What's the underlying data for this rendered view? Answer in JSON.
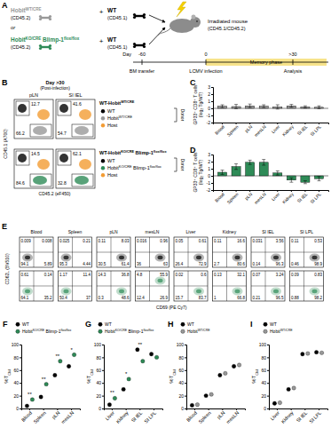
{
  "panel_a": {
    "label": "A",
    "donors": [
      {
        "mouse": [
          "Hobit",
          {
            "sup": "WT/CRE"
          }
        ],
        "color": "#999999",
        "cd": "(CD45.2)",
        "plus": "+",
        "partner": "WT",
        "partner_cd": "(CD45.1)"
      },
      {
        "mouse": [
          "Hobit",
          {
            "sup": "KO/CRE"
          },
          " Blimp-1",
          {
            "sup": "flox/flox"
          }
        ],
        "color": "#2e8b57",
        "cd": "(CD45.2)",
        "plus": "+",
        "partner": "WT",
        "partner_cd": "(CD45.1)"
      }
    ],
    "or": "or",
    "recipient": [
      "Irradiated mouse",
      "(CD45.1/CD45.2)"
    ],
    "timeline": {
      "label": "Day",
      "events": [
        {
          "day": "-60",
          "text": "BM transfer"
        },
        {
          "day": "0",
          "text": "LCMV infection"
        },
        {
          "day": ">30",
          "text": "Analysis"
        }
      ],
      "phase": "Memory phase"
    }
  },
  "panel_b": {
    "label": "B",
    "timepoint": [
      "Day >30",
      "(Post-infection)"
    ],
    "tissues": [
      "pLN",
      "SI IEL"
    ],
    "y_axis": "CD45.1 (A700)",
    "x_axis": "CD45.2 (eF450)",
    "donor_label": "Donor",
    "rows": [
      {
        "title": [
          "WT-Hobit",
          {
            "sup": "WT/CRE"
          }
        ],
        "entries": [
          {
            "text": [
              "WT"
            ],
            "color": "#000000"
          },
          {
            "text": [
              "Hobit",
              {
                "sup": "WT/CRE"
              }
            ],
            "color": "#999999"
          },
          {
            "text": [
              "Host"
            ],
            "color": "#f39c33"
          }
        ],
        "gates": [
          [
            12.7,
            66.2
          ],
          [
            41.6,
            54.7
          ]
        ]
      },
      {
        "title": [
          "WT-Hobit",
          {
            "sup": "KO/CRE"
          },
          " Blimp-1",
          {
            "sup": "flox/flox"
          }
        ],
        "entries": [
          {
            "text": [
              "WT"
            ],
            "color": "#000000"
          },
          {
            "text": [
              "Hobit",
              {
                "sup": "KO/CRE"
              },
              " Blimp-1",
              {
                "sup": "flox/flox"
              }
            ],
            "color": "#2e8b57"
          },
          {
            "text": [
              "Host"
            ],
            "color": "#f39c33"
          }
        ],
        "gates": [
          [
            14.5,
            84.6
          ],
          [
            62.1,
            32.8
          ]
        ]
      }
    ]
  },
  "panel_e": {
    "label": "E",
    "tissues": [
      "Blood",
      "Spleen",
      "pLN",
      "mesLN",
      "Liver",
      "Kidney",
      "SI IEL",
      "SI LPL"
    ],
    "y_axis": "CD62L (BV510)",
    "x_axis": "CD69 (PE Cy7)",
    "rows": [
      {
        "color": "#000000",
        "quadrants": [
          [
            0.009,
            0.008,
            94.1,
            5.89
          ],
          [
            0.025,
            0.21,
            95.3,
            4.44
          ],
          [
            0.11,
            8.03,
            30.5,
            61.4
          ],
          [
            0.016,
            0.96,
            36,
            63
          ],
          [
            0.05,
            0.61,
            26.4,
            72.9
          ],
          [
            0.11,
            16.6,
            2.7,
            80.6
          ],
          [
            0.031,
            3.56,
            0.14,
            96.3
          ],
          [
            0.11,
            0.53,
            0.46,
            98.9
          ]
        ]
      },
      {
        "color": "#2e8b57",
        "quadrants": [
          [
            0.61,
            0.14,
            64.1,
            35.2
          ],
          [
            1.17,
            11.4,
            50.4,
            37
          ],
          [
            14.3,
            36.8,
            0.3,
            48.6
          ],
          [
            4.8,
            55.9,
            12.4,
            26.9
          ],
          [
            0.02,
            0.6,
            15.7,
            83.7
          ],
          [
            0.13,
            32.1,
            1,
            66.8
          ],
          [
            0.07,
            3.24,
            0.21,
            96.5
          ],
          [
            0.09,
            0.83,
            0.88,
            98.2
          ]
        ]
      }
    ]
  },
  "chart_data": [
    {
      "title": "C",
      "type": "bar",
      "y_label": [
        "GP33⁺ CD8⁺ T cells",
        "(log₂ Tg/WT)"
      ],
      "categories": [
        "Blood",
        "Spleen",
        "pLN",
        "mesLN",
        "Liver",
        "Kidney",
        "SI IEL",
        "SI LPL"
      ],
      "values": [
        0.3,
        0.25,
        0.35,
        0.3,
        0.2,
        0.35,
        0.2,
        0.15
      ],
      "errors": [
        0.2,
        0.3,
        0.25,
        0.2,
        0.3,
        0.2,
        0.15,
        0.2
      ],
      "color": "#999999",
      "ylim": [
        -2,
        3
      ],
      "yticks": [
        -2,
        -1,
        0,
        1,
        2,
        3
      ]
    },
    {
      "title": "D",
      "type": "bar",
      "y_label": [
        "GP33⁺ CD8⁺ T cells",
        "(log₂ Tg/WT)"
      ],
      "categories": [
        "Blood",
        "Spleen",
        "pLN",
        "mesLN",
        "Liver",
        "Kidney",
        "SI IEL",
        "SI LPL"
      ],
      "values": [
        0.5,
        1.3,
        1.9,
        1.9,
        0.4,
        -0.6,
        -0.9,
        -0.4
      ],
      "errors": [
        0.3,
        0.4,
        0.3,
        0.4,
        0.3,
        0.3,
        0.2,
        0.3
      ],
      "color": "#2e8b57",
      "ylim": [
        -2,
        3
      ],
      "yticks": [
        -2,
        -1,
        0,
        1,
        2,
        3
      ]
    },
    {
      "title": "F",
      "type": "scatter",
      "y_label": [
        "%T",
        {
          "sub": "CM"
        }
      ],
      "categories": [
        "Blood",
        "Spleen",
        "pLN",
        "mesLN"
      ],
      "series": [
        {
          "name": [
            "WT"
          ],
          "color": "#000000",
          "values": [
            4,
            18,
            52,
            66
          ]
        },
        {
          "name": [
            "Hobit",
            {
              "sup": "KO/CRE"
            },
            " Blimp-1",
            {
              "sup": "flox/flox"
            }
          ],
          "color": "#2e8b57",
          "values": [
            14,
            38,
            74,
            84
          ]
        }
      ],
      "annotations": [
        {
          "x": "Blood",
          "text": "**"
        },
        {
          "x": "Spleen",
          "text": "**"
        },
        {
          "x": "pLN",
          "text": "**"
        },
        {
          "x": "mesLN",
          "text": "*"
        }
      ],
      "ylim": [
        0,
        100
      ],
      "yticks": [
        0,
        20,
        40,
        60,
        80,
        100
      ],
      "marker": "circle",
      "legend": "top"
    },
    {
      "title": "G",
      "type": "scatter",
      "y_label": [
        "%T",
        {
          "sub": "CM"
        }
      ],
      "categories": [
        "Liver",
        "Kidney",
        "SI IEL",
        "SI LPL"
      ],
      "series": [
        {
          "name": [
            "WT"
          ],
          "color": "#000000",
          "values": [
            6,
            30,
            92,
            85
          ]
        },
        {
          "name": [
            "Hobit",
            {
              "sup": "KO/CRE"
            },
            " Blimp-1",
            {
              "sup": "flox/flox"
            }
          ],
          "color": "#2e8b57",
          "values": [
            16,
            46,
            74,
            80
          ]
        }
      ],
      "annotations": [
        {
          "x": "Liver",
          "text": "**"
        },
        {
          "x": "Kidney",
          "text": "*"
        },
        {
          "x": "SI IEL",
          "text": "**"
        }
      ],
      "ylim": [
        0,
        100
      ],
      "yticks": [
        0,
        20,
        40,
        60,
        80,
        100
      ],
      "marker": "circle",
      "legend": "top"
    },
    {
      "title": "H",
      "type": "scatter",
      "y_label": [
        "%T",
        {
          "sub": "CM"
        }
      ],
      "categories": [
        "Blood",
        "Spleen",
        "pLN",
        "mesLN"
      ],
      "series": [
        {
          "name": [
            "WT"
          ],
          "color": "#000000",
          "values": [
            5,
            20,
            52,
            66
          ]
        },
        {
          "name": [
            "Hobit",
            {
              "sup": "WT/CRE"
            }
          ],
          "color": "#999999",
          "values": [
            6,
            22,
            55,
            68
          ]
        }
      ],
      "ylim": [
        0,
        100
      ],
      "yticks": [
        0,
        20,
        40,
        60,
        80,
        100
      ],
      "marker": "circle",
      "legend": "top"
    },
    {
      "title": "I",
      "type": "scatter",
      "y_label": [
        "%T",
        {
          "sub": "CM"
        }
      ],
      "categories": [
        "Liver",
        "Kidney",
        "SI IEL",
        "SI LPL"
      ],
      "series": [
        {
          "name": [
            "WT"
          ],
          "color": "#000000",
          "values": [
            8,
            30,
            85,
            88
          ]
        },
        {
          "name": [
            "Hobit",
            {
              "sup": "WT/CRE"
            }
          ],
          "color": "#999999",
          "values": [
            9,
            32,
            86,
            87
          ]
        }
      ],
      "ylim": [
        0,
        100
      ],
      "yticks": [
        0,
        20,
        40,
        60,
        80,
        100
      ],
      "marker": "circle",
      "legend": "top"
    }
  ]
}
